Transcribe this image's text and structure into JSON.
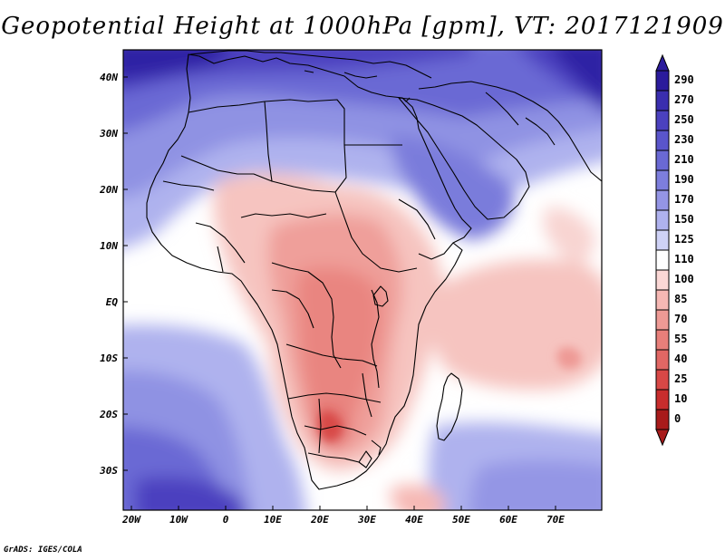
{
  "title": "Geopotential Height at 1000hPa [gpm], VT: 2017121909",
  "credit": "GrADS: IGES/COLA",
  "y_axis_labels": [
    "40N",
    "30N",
    "20N",
    "10N",
    "EQ",
    "10S",
    "20S",
    "30S"
  ],
  "x_axis_labels": [
    "20W",
    "10W",
    "0",
    "10E",
    "20E",
    "30E",
    "40E",
    "50E",
    "60E",
    "70E"
  ],
  "colorbar": {
    "labels": [
      "290",
      "270",
      "250",
      "230",
      "210",
      "190",
      "170",
      "150",
      "125",
      "110",
      "100",
      "85",
      "70",
      "55",
      "40",
      "25",
      "10",
      "0"
    ],
    "colors": [
      "#2b1b9c",
      "#3a2eaf",
      "#4b41bf",
      "#5a55cb",
      "#6a69d4",
      "#7d7edd",
      "#9495e5",
      "#afb2ee",
      "#cfd2f6",
      "#ffffff",
      "#fbd8d6",
      "#f6b8b4",
      "#ee9a95",
      "#e87f7a",
      "#e16764",
      "#d84846",
      "#c82d2d",
      "#a81b1b"
    ]
  }
}
